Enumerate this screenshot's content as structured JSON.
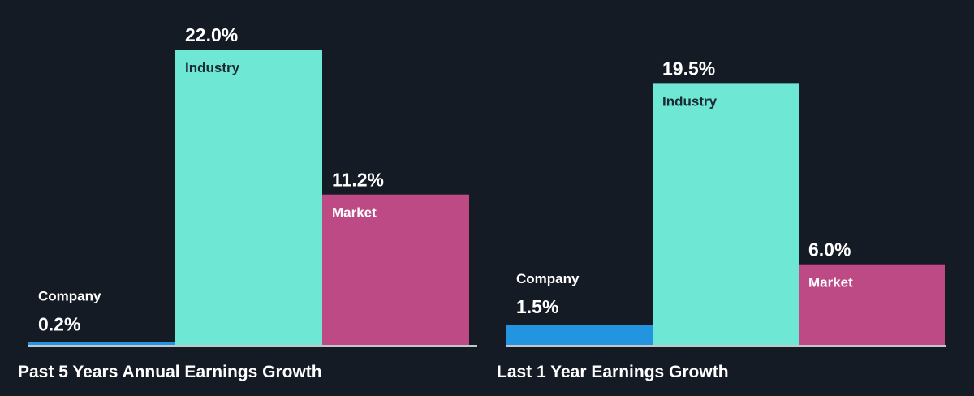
{
  "chart_data": [
    {
      "type": "bar",
      "title": "Past 5 Years Annual Earnings Growth",
      "categories": [
        "Company",
        "Industry",
        "Market"
      ],
      "values": [
        0.2,
        22.0,
        11.2
      ],
      "value_labels": [
        "0.2%",
        "22.0%",
        "11.2%"
      ],
      "colors": [
        "#2394df",
        "#6ee7d5",
        "#bd4985"
      ],
      "ylim": [
        0,
        22.0
      ]
    },
    {
      "type": "bar",
      "title": "Last 1 Year Earnings Growth",
      "categories": [
        "Company",
        "Industry",
        "Market"
      ],
      "values": [
        1.5,
        19.5,
        6.0
      ],
      "value_labels": [
        "1.5%",
        "19.5%",
        "6.0%"
      ],
      "colors": [
        "#2394df",
        "#6ee7d5",
        "#bd4985"
      ],
      "ylim": [
        0,
        22.0
      ]
    }
  ],
  "style": {
    "background": "#151b24",
    "baseline_color": "#ffffff",
    "label_dark": "#1b2a33",
    "label_light": "#ffffff"
  }
}
